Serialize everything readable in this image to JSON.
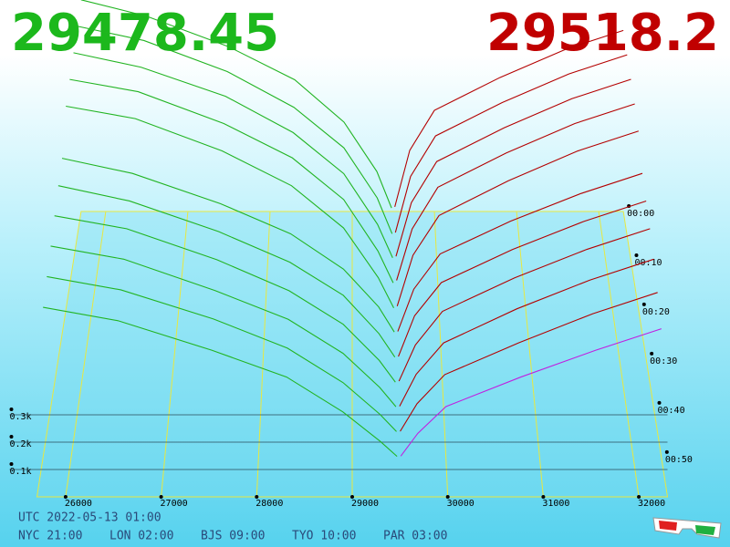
{
  "header": {
    "bid_price": 29478.45,
    "ask_price": 29518.2
  },
  "chart_data": {
    "type": "depth3d",
    "bid_color": "#22b422",
    "ask_color": "#b40000",
    "front_ask_color": "#c020e0",
    "xlim": [
      25700,
      32300
    ],
    "xticks": [
      26000,
      27000,
      28000,
      29000,
      30000,
      31000,
      32000
    ],
    "zticks": [
      {
        "value": 100,
        "label": "0.1k"
      },
      {
        "value": 200,
        "label": "0.2k"
      },
      {
        "value": 300,
        "label": "0.3k"
      }
    ],
    "tlim": [
      0,
      58
    ],
    "tticks": [
      {
        "value": 0,
        "label": "00:00"
      },
      {
        "value": 10,
        "label": "00:10"
      },
      {
        "value": 20,
        "label": "00:20"
      },
      {
        "value": 30,
        "label": "00:30"
      },
      {
        "value": 40,
        "label": "00:40"
      },
      {
        "value": 50,
        "label": "00:50"
      }
    ],
    "bid_prices": [
      25700,
      26500,
      27500,
      28300,
      28900,
      29300,
      29478.45
    ],
    "ask_prices": [
      29518.2,
      29700,
      30000,
      30800,
      31600,
      32300
    ],
    "snapshots": [
      {
        "time": 0,
        "bids": [
          900,
          830,
          700,
          560,
          380,
          170,
          15
        ],
        "asks": [
          20,
          260,
          430,
          570,
          690,
          770
        ]
      },
      {
        "time": 5,
        "bids": [
          880,
          820,
          690,
          540,
          370,
          160,
          10
        ],
        "asks": [
          15,
          250,
          420,
          560,
          680,
          760
        ]
      },
      {
        "time": 10,
        "bids": [
          860,
          800,
          680,
          530,
          360,
          150,
          12
        ],
        "asks": [
          18,
          240,
          410,
          550,
          670,
          750
        ]
      },
      {
        "time": 15,
        "bids": [
          840,
          790,
          660,
          520,
          350,
          140,
          10
        ],
        "asks": [
          20,
          230,
          400,
          540,
          660,
          740
        ]
      },
      {
        "time": 20,
        "bids": [
          820,
          770,
          640,
          500,
          330,
          130,
          8
        ],
        "asks": [
          15,
          220,
          380,
          520,
          640,
          720
        ]
      },
      {
        "time": 25,
        "bids": [
          700,
          640,
          520,
          400,
          260,
          110,
          10
        ],
        "asks": [
          12,
          180,
          320,
          450,
          560,
          640
        ]
      },
      {
        "time": 30,
        "bids": [
          680,
          620,
          500,
          380,
          250,
          100,
          8
        ],
        "asks": [
          10,
          170,
          300,
          430,
          540,
          620
        ]
      },
      {
        "time": 35,
        "bids": [
          650,
          600,
          480,
          360,
          230,
          90,
          6
        ],
        "asks": [
          10,
          150,
          280,
          410,
          520,
          600
        ]
      },
      {
        "time": 40,
        "bids": [
          620,
          570,
          450,
          340,
          210,
          80,
          6
        ],
        "asks": [
          8,
          130,
          250,
          380,
          490,
          570
        ]
      },
      {
        "time": 45,
        "bids": [
          590,
          540,
          430,
          320,
          190,
          70,
          5
        ],
        "asks": [
          6,
          110,
          220,
          340,
          450,
          530
        ]
      },
      {
        "time": 50,
        "bids": [
          560,
          510,
          400,
          300,
          170,
          60,
          4
        ],
        "asks": [
          5,
          90,
          190,
          300,
          400,
          480
        ]
      }
    ]
  },
  "footer": {
    "utc": "UTC 2022-05-13 01:00",
    "nyc": "NYC 21:00",
    "lon": "LON 02:00",
    "bjs": "BJS 09:00",
    "tyo": "TYO 10:00",
    "par": "PAR 03:00"
  }
}
